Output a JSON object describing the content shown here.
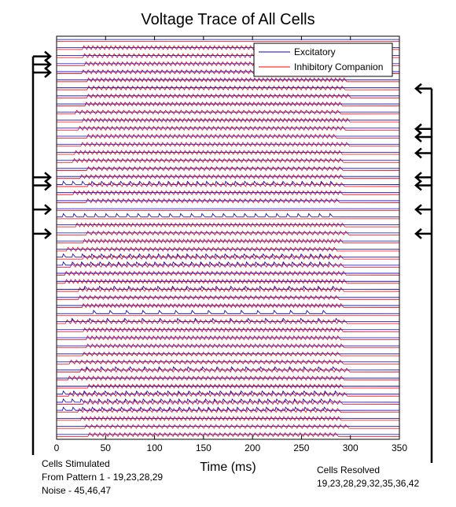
{
  "chart_data": {
    "type": "line",
    "title": "Voltage Trace of All Cells",
    "xlabel": "Time (ms)",
    "ylabel": "",
    "xlim": [
      0,
      350
    ],
    "x_ticks": [
      0,
      50,
      100,
      150,
      200,
      250,
      300,
      350
    ],
    "grid": false,
    "legend_position": "top-right",
    "n_cells": 50,
    "series": [
      {
        "name": "Excitatory",
        "color": "#0000cc"
      },
      {
        "name": "Inhibitory Companion",
        "color": "#ff0000"
      }
    ],
    "cells_stimulated": [
      19,
      23,
      28,
      29,
      45,
      46,
      47
    ],
    "cells_resolved": [
      19,
      23,
      28,
      29,
      32,
      35,
      36,
      42
    ]
  },
  "caption_left": {
    "line1": "Cells Stimulated",
    "line2": "From Pattern 1 - 19,23,28,29",
    "line3": "Noise - 45,46,47"
  },
  "caption_right": {
    "line1": "Cells Resolved",
    "line2": "19,23,28,29,32,35,36,42"
  }
}
